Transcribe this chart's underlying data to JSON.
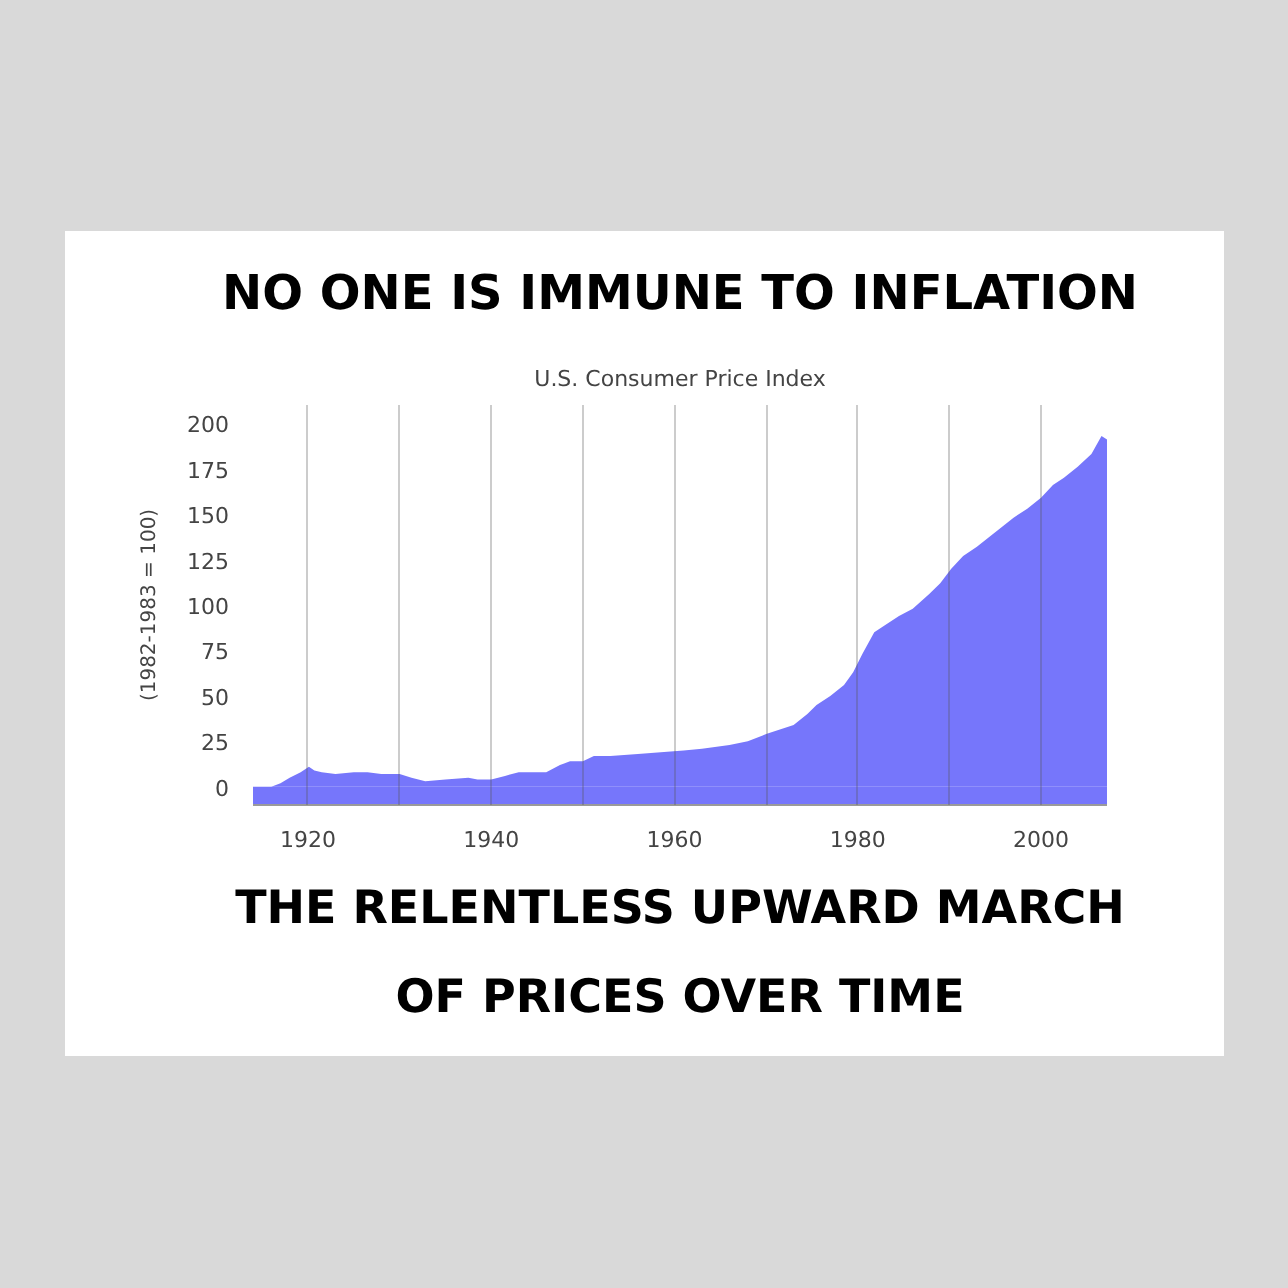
{
  "chart_data": {
    "type": "area",
    "title": "NO ONE IS IMMUNE TO INFLATION",
    "subtitle": "U.S. Consumer Price Index",
    "ylabel": "(1982-1983 = 100)",
    "annotations": [
      "THE RELENTLESS UPWARD MARCH\nOF PRICES OVER TIME"
    ],
    "x": [
      1914,
      1916,
      1917,
      1918,
      1919.2,
      1920.1,
      1920.7,
      1921.5,
      1923,
      1925,
      1926.5,
      1928,
      1930,
      1931.3,
      1932.8,
      1935,
      1937.5,
      1938.5,
      1940,
      1941.5,
      1943,
      1946,
      1947.5,
      1948.6,
      1950,
      1951.2,
      1953,
      1956,
      1958.5,
      1961,
      1963,
      1966,
      1968,
      1970,
      1973,
      1974.5,
      1975.5,
      1977,
      1978.5,
      1979.5,
      1980.5,
      1981.8,
      1983,
      1984.5,
      1986,
      1987.8,
      1989,
      1990.2,
      1991.5,
      1993,
      1995,
      1997,
      1998.5,
      2000,
      2001.3,
      2002.5,
      2004,
      2005.5,
      2006.6,
      2007.2
    ],
    "series": [
      {
        "color": "#7676fb",
        "values": [
          0,
          0,
          2,
          5,
          8,
          11,
          9,
          8,
          7,
          8,
          8,
          7,
          7,
          5,
          3,
          4,
          5,
          4,
          4,
          6,
          8,
          8,
          12,
          14,
          14,
          17,
          17,
          18,
          19,
          20,
          21,
          23,
          25,
          29,
          34,
          40,
          45,
          50,
          56,
          63,
          73,
          85,
          89,
          94,
          98,
          106,
          112,
          120,
          127,
          132,
          140,
          148,
          153,
          159,
          166,
          170,
          176,
          183,
          193,
          191
        ]
      }
    ],
    "bands": [
      {
        "axis": "y",
        "from": -10,
        "to": 0,
        "color": "#7676fb"
      }
    ],
    "xlim": [
      1914,
      2007.2
    ],
    "ylim": [
      -10,
      210
    ],
    "xticks": [
      1920,
      {
        "value": 1930,
        "label": null
      },
      1940,
      {
        "value": 1950,
        "label": null
      },
      1960,
      {
        "value": 1970,
        "label": null
      },
      1980,
      {
        "value": 1990,
        "label": null
      },
      2000
    ],
    "yticks": [
      0,
      25,
      50,
      75,
      100,
      125,
      150,
      175,
      200
    ],
    "grid": "x"
  }
}
